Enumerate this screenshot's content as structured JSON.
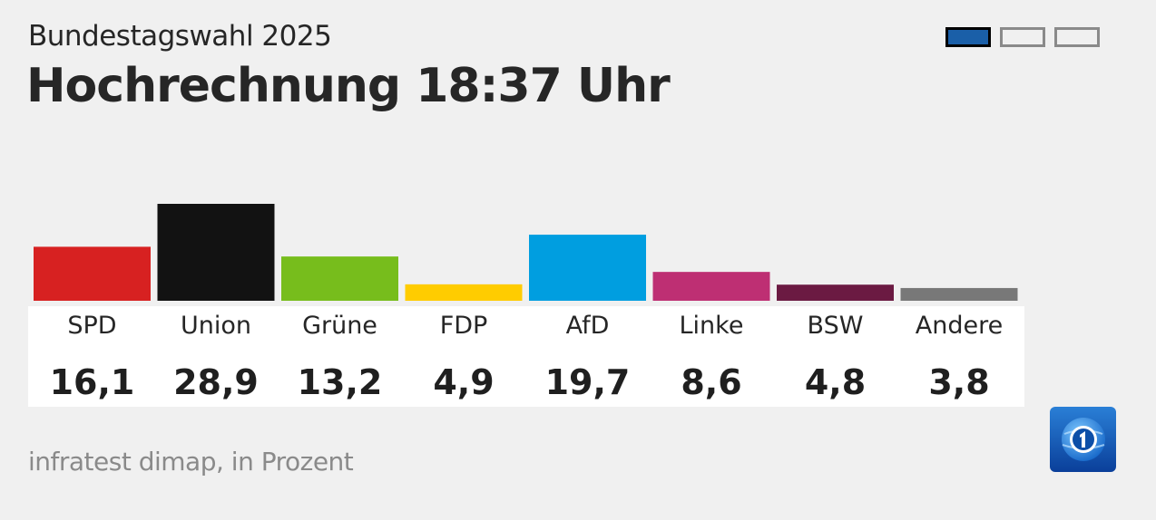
{
  "header": {
    "subtitle": "Bundestagswahl 2025",
    "title": "Hochrechnung 18:37 Uhr"
  },
  "pager": {
    "pages": 3,
    "active_index": 0,
    "active_color": "#1a5fa8"
  },
  "source": "infratest dimap, in Prozent",
  "logo": {
    "icon": "tagesschau-one-logo-icon"
  },
  "chart_data": {
    "type": "bar",
    "categories": [
      "SPD",
      "Union",
      "Grüne",
      "FDP",
      "AfD",
      "Linke",
      "BSW",
      "Andere"
    ],
    "values": [
      16.1,
      28.9,
      13.2,
      4.9,
      19.7,
      8.6,
      4.8,
      3.8
    ],
    "value_labels": [
      "16,1",
      "28,9",
      "13,2",
      "4,9",
      "19,7",
      "8,6",
      "4,8",
      "3,8"
    ],
    "colors": [
      "#d72121",
      "#121212",
      "#77bd1c",
      "#ffcc00",
      "#009ee0",
      "#be2f73",
      "#6b1a42",
      "#787878"
    ],
    "unit": "Prozent",
    "ylim": [
      0,
      28.9
    ],
    "grid": false,
    "legend": "none"
  }
}
